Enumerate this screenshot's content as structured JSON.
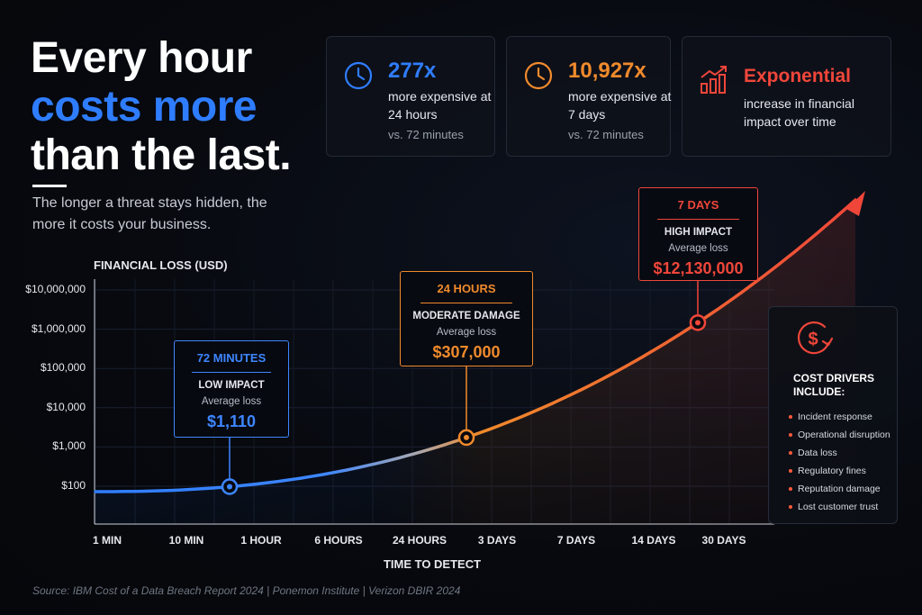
{
  "headline": {
    "line1": "Every hour",
    "line2": "costs more",
    "line3": "than the last.",
    "subtitle": "The longer a threat stays hidden, the more it costs your business."
  },
  "stats": [
    {
      "value": "277x",
      "text": "more expensive at 24 hours",
      "note": "vs. 72 minutes",
      "icon": "clock-icon",
      "color": "#2f7dff"
    },
    {
      "value": "10,927x",
      "text": "more expensive at 7 days",
      "note": "vs. 72 minutes",
      "icon": "clock-icon",
      "color": "#f08a2c"
    },
    {
      "value": "Exponential",
      "text": "increase in financial impact over time",
      "note": "",
      "icon": "rising-bar-chart-icon",
      "color": "#f0463a"
    }
  ],
  "chart_data": {
    "type": "line",
    "ylabel": "FINANCIAL LOSS (USD)",
    "xlabel": "TIME TO DETECT",
    "y_scale": "log",
    "y_ticks": [
      "$10,000,000",
      "$1,000,000",
      "$100,000",
      "$10,000",
      "$1,000",
      "$100"
    ],
    "x_ticks": [
      "1 MIN",
      "10 MIN",
      "1 HOUR",
      "6 HOURS",
      "24 HOURS",
      "3 DAYS",
      "7 DAYS",
      "14 DAYS",
      "30 DAYS"
    ],
    "grid": true,
    "series_colors": [
      "#2f7dff",
      "#f08a2c",
      "#f0463a"
    ],
    "highlights": [
      {
        "label": "72 MINUTES",
        "impact": "LOW IMPACT",
        "sub": "Average loss",
        "value": "$1,110",
        "color": "#3d86ff"
      },
      {
        "label": "24 HOURS",
        "impact": "MODERATE DAMAGE",
        "sub": "Average loss",
        "value": "$307,000",
        "color": "#f08a2c"
      },
      {
        "label": "7 DAYS",
        "impact": "HIGH IMPACT",
        "sub": "Average loss",
        "value": "$12,130,000",
        "color": "#f0463a"
      }
    ]
  },
  "drivers": {
    "title": "COST DRIVERS INCLUDE:",
    "icon": "dollar-cycle-icon",
    "items": [
      "Incident response",
      "Operational disruption",
      "Data loss",
      "Regulatory fines",
      "Reputation damage",
      "Lost customer trust"
    ]
  },
  "source": "Source: IBM Cost of a Data Breach Report 2024  |  Ponemon Institute  |  Verizon DBIR 2024"
}
